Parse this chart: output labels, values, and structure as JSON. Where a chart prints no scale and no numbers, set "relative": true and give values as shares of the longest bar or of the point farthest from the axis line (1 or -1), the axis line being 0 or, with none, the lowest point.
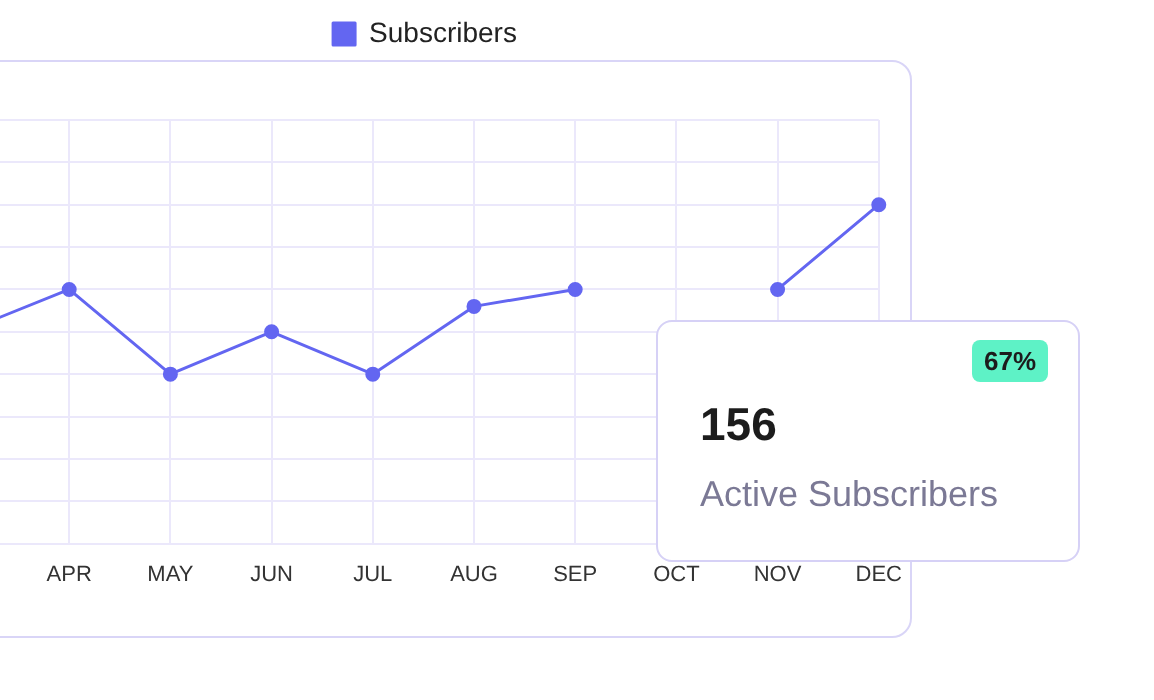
{
  "chart_data": {
    "type": "line",
    "relative": true,
    "categories": [
      null,
      "APR",
      "MAY",
      "JUN",
      "JUL",
      "AUG",
      "SEP",
      "OCT",
      "NOV",
      "DEC"
    ],
    "series": [
      {
        "name": "Subscribers",
        "color": "#6366f1",
        "values": [
          0.63,
          0.75,
          0.5,
          0.625,
          0.5,
          0.7,
          0.75,
          null,
          0.75,
          1
        ]
      }
    ],
    "grid": true,
    "legend": "top",
    "marker": "circle",
    "annotations": [
      "156",
      "Active Subscribers",
      "67%"
    ]
  }
}
